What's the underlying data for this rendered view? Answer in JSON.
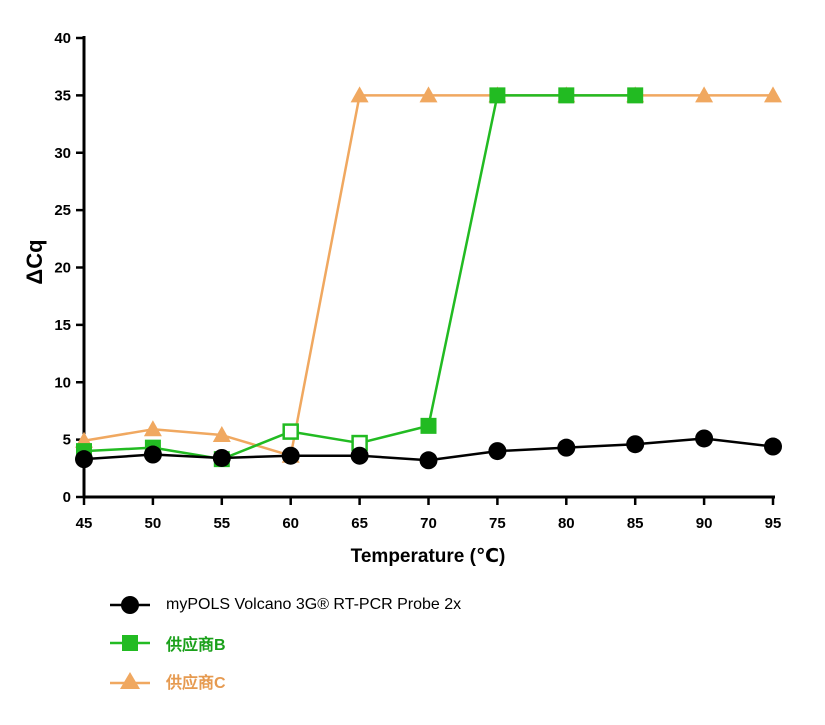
{
  "chart_data": {
    "type": "line",
    "xlabel": "Temperature (℃)",
    "ylabel": "ΔCq",
    "x": [
      45,
      50,
      55,
      60,
      65,
      70,
      75,
      80,
      85,
      90,
      95
    ],
    "xlim": [
      45,
      95
    ],
    "ylim": [
      0,
      40
    ],
    "xticks": [
      45,
      50,
      55,
      60,
      65,
      70,
      75,
      80,
      85,
      90,
      95
    ],
    "yticks": [
      0,
      5,
      10,
      15,
      20,
      25,
      30,
      35,
      40
    ],
    "series": [
      {
        "name": "供应商C",
        "color": "#f0a860",
        "marker": "triangle",
        "x": [
          45,
          50,
          55,
          60,
          65,
          70,
          75,
          80,
          85,
          90,
          95
        ],
        "values": [
          4.9,
          5.9,
          5.4,
          3.6,
          35,
          35,
          35,
          35,
          35,
          35,
          35
        ]
      },
      {
        "name": "供应商B",
        "color": "#22bb22",
        "marker": "square",
        "x": [
          45,
          50,
          55,
          60,
          65,
          70,
          75,
          80,
          85
        ],
        "values": [
          4.0,
          4.3,
          3.3,
          5.7,
          4.7,
          6.2,
          35,
          35,
          35
        ],
        "open_markers_at": [
          60,
          65
        ]
      },
      {
        "name": "myPOLS Volcano 3G® RT-PCR Probe 2x",
        "color": "#000000",
        "marker": "circle",
        "x": [
          45,
          50,
          55,
          60,
          65,
          70,
          75,
          80,
          85,
          90,
          95
        ],
        "values": [
          3.3,
          3.7,
          3.4,
          3.6,
          3.6,
          3.2,
          4.0,
          4.3,
          4.6,
          5.1,
          4.4
        ]
      }
    ]
  },
  "legend": [
    {
      "label": "myPOLS Volcano 3G® RT-PCR Probe 2x",
      "color": "#000000",
      "text_color": "#000000",
      "marker": "circle"
    },
    {
      "label": "供应商B",
      "color": "#22bb22",
      "text_color": "#1aa01a",
      "marker": "square"
    },
    {
      "label": "供应商C",
      "color": "#f0a860",
      "text_color": "#e69a50",
      "marker": "triangle"
    }
  ]
}
